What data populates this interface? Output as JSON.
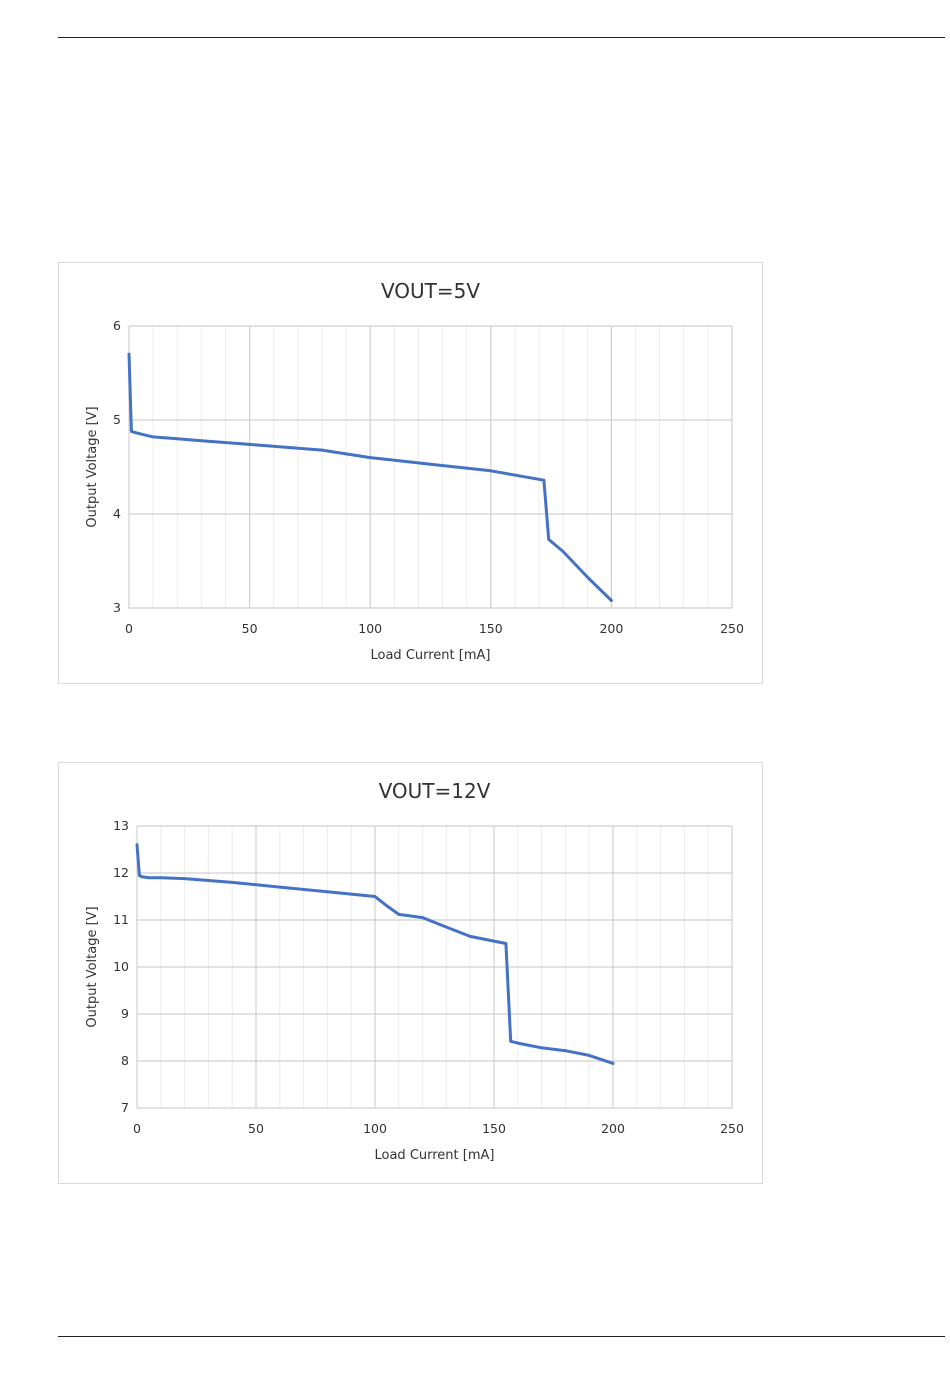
{
  "page": {
    "rule_color": "#222222"
  },
  "chart_data": [
    {
      "type": "line",
      "title": "VOUT=5V",
      "xlabel": "Load Current [mA]",
      "ylabel": "Output Voltage [V]",
      "xlim": [
        0,
        250
      ],
      "ylim": [
        3,
        6
      ],
      "x_ticks": [
        0,
        50,
        100,
        150,
        200,
        250
      ],
      "y_ticks": [
        3,
        4,
        5,
        6
      ],
      "x_minor_step": 10,
      "grid": true,
      "line_color": "#4472C4",
      "series": [
        {
          "x": [
            0,
            1,
            2,
            5,
            10,
            20,
            30,
            50,
            80,
            100,
            125,
            150,
            172,
            174,
            180,
            190,
            200
          ],
          "y": [
            5.7,
            4.88,
            4.87,
            4.85,
            4.82,
            4.8,
            4.78,
            4.74,
            4.68,
            4.6,
            4.53,
            4.46,
            4.36,
            3.73,
            3.6,
            3.33,
            3.08
          ]
        }
      ]
    },
    {
      "type": "line",
      "title": "VOUT=12V",
      "xlabel": "Load Current [mA]",
      "ylabel": "Output Voltage [V]",
      "xlim": [
        0,
        250
      ],
      "ylim": [
        7,
        13
      ],
      "x_ticks": [
        0,
        50,
        100,
        150,
        200,
        250
      ],
      "y_ticks": [
        7,
        8,
        9,
        10,
        11,
        12,
        13
      ],
      "x_minor_step": 10,
      "grid": true,
      "line_color": "#4472C4",
      "series": [
        {
          "x": [
            0,
            1,
            2,
            5,
            10,
            20,
            40,
            60,
            80,
            100,
            105,
            110,
            120,
            130,
            140,
            150,
            155,
            157,
            160,
            170,
            180,
            190,
            200
          ],
          "y": [
            12.6,
            11.95,
            11.92,
            11.9,
            11.9,
            11.88,
            11.8,
            11.7,
            11.6,
            11.5,
            11.3,
            11.12,
            11.05,
            10.85,
            10.65,
            10.55,
            10.5,
            8.42,
            8.38,
            8.28,
            8.22,
            8.12,
            7.95
          ]
        }
      ]
    }
  ]
}
